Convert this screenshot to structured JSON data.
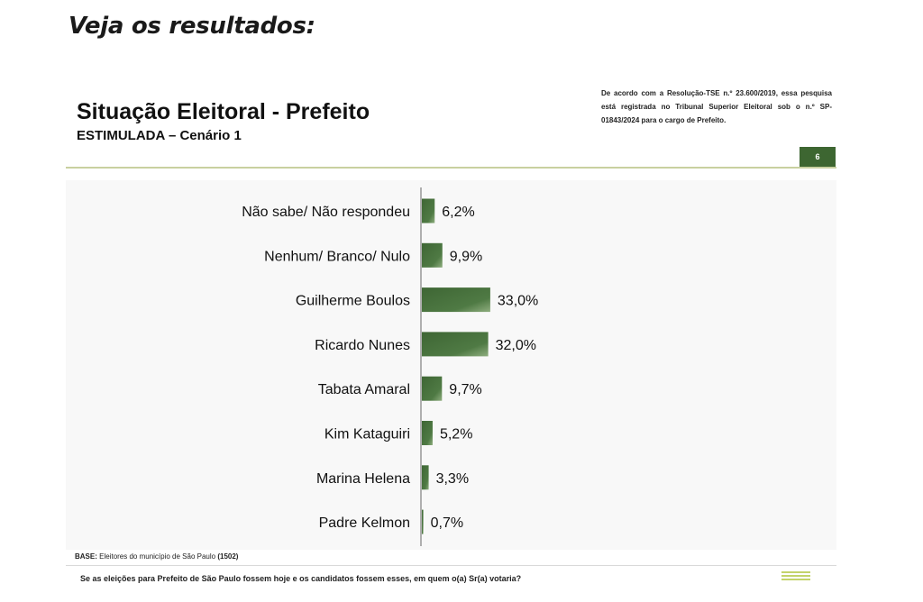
{
  "page_heading": "Veja os resultados:",
  "slide": {
    "title": "Situação Eleitoral - Prefeito",
    "subtitle": "ESTIMULADA – Cenário 1",
    "legal_note": "De acordo com a Resolução-TSE n.º 23.600/2019, essa pesquisa está registrada no Tribunal Superior Eleitoral sob o n.º SP-01843/2024 para o cargo de Prefeito.",
    "page_number": "6",
    "base_label": "BASE:",
    "base_text": "Eleitores do município de São Paulo",
    "base_count": "(1502)",
    "survey_question": "Se as eleições para Prefeito de São Paulo fossem hoje e os candidatos fossem esses, em quem o(a) Sr(a) votaria?"
  },
  "colors": {
    "bar_dark": "#3e6634",
    "bar_light": "#8fae7f",
    "badge": "#3d6631"
  },
  "chart_data": {
    "type": "bar",
    "orientation": "horizontal",
    "categories": [
      "Não sabe/ Não respondeu",
      "Nenhum/ Branco/ Nulo",
      "Guilherme Boulos",
      "Ricardo Nunes",
      "Tabata Amaral",
      "Kim Kataguiri",
      "Marina Helena",
      "Padre Kelmon"
    ],
    "values": [
      6.2,
      9.9,
      33.0,
      32.0,
      9.7,
      5.2,
      3.3,
      0.7
    ],
    "value_labels": [
      "6,2%",
      "9,9%",
      "33,0%",
      "32,0%",
      "9,7%",
      "5,2%",
      "3,3%",
      "0,7%"
    ],
    "xlim": [
      0,
      100
    ],
    "grid": false,
    "legend": "none"
  }
}
